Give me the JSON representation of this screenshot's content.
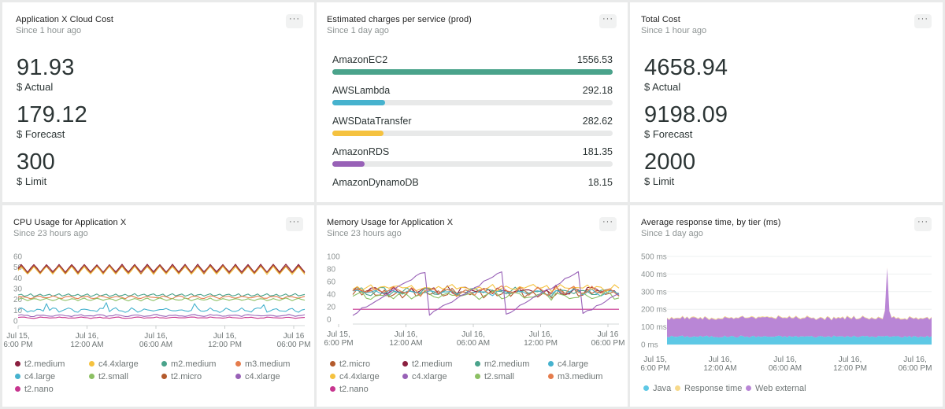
{
  "cards": {
    "cloud_cost": {
      "title": "Application X Cloud Cost",
      "subtitle": "Since 1 hour ago",
      "menu": "···",
      "metrics": [
        {
          "value": "91.93",
          "label": "$ Actual"
        },
        {
          "value": "179.12",
          "label": "$ Forecast"
        },
        {
          "value": "300",
          "label": "$ Limit"
        }
      ]
    },
    "charges": {
      "title": "Estimated charges per service (prod)",
      "subtitle": "Since 1 day ago",
      "menu": "···",
      "max": 1556.53,
      "items": [
        {
          "name": "AmazonEC2",
          "value": "1556.53",
          "amount": 1556.53,
          "color": "#4aa38b"
        },
        {
          "name": "AWSLambda",
          "value": "292.18",
          "amount": 292.18,
          "color": "#46b2ce"
        },
        {
          "name": "AWSDataTransfer",
          "value": "282.62",
          "amount": 282.62,
          "color": "#f5c23f"
        },
        {
          "name": "AmazonRDS",
          "value": "181.35",
          "amount": 181.35,
          "color": "#9861b7"
        },
        {
          "name": "AmazonDynamoDB",
          "value": "18.15",
          "amount": 18.15,
          "color": "#e57c4c"
        }
      ]
    },
    "total_cost": {
      "title": "Total Cost",
      "subtitle": "Since 1 hour ago",
      "menu": "···",
      "metrics": [
        {
          "value": "4658.94",
          "label": "$ Actual"
        },
        {
          "value": "9198.09",
          "label": "$ Forecast"
        },
        {
          "value": "2000",
          "label": "$ Limit"
        }
      ]
    },
    "cpu": {
      "title": "CPU Usage for Application X",
      "subtitle": "Since 23 hours ago",
      "menu": "···",
      "legend": [
        {
          "name": "t2.medium",
          "color": "#8b1f3f"
        },
        {
          "name": "c4.4xlarge",
          "color": "#f5c23f"
        },
        {
          "name": "m2.medium",
          "color": "#4aa38b"
        },
        {
          "name": "m3.medium",
          "color": "#e57c4c"
        },
        {
          "name": "c4.large",
          "color": "#46b2ce"
        },
        {
          "name": "t2.small",
          "color": "#8cc063"
        },
        {
          "name": "t2.micro",
          "color": "#b35a2c"
        },
        {
          "name": "c4.xlarge",
          "color": "#9861b7"
        },
        {
          "name": "t2.nano",
          "color": "#c7358f"
        }
      ]
    },
    "memory": {
      "title": "Memory Usage for Application X",
      "subtitle": "Since 23 hours ago",
      "menu": "···",
      "legend": [
        {
          "name": "t2.micro",
          "color": "#b35a2c"
        },
        {
          "name": "t2.medium",
          "color": "#8b1f3f"
        },
        {
          "name": "m2.medium",
          "color": "#4aa38b"
        },
        {
          "name": "c4.large",
          "color": "#46b2ce"
        },
        {
          "name": "c4.4xlarge",
          "color": "#f5c23f"
        },
        {
          "name": "c4.xlarge",
          "color": "#9861b7"
        },
        {
          "name": "t2.small",
          "color": "#8cc063"
        },
        {
          "name": "m3.medium",
          "color": "#e57c4c"
        },
        {
          "name": "t2.nano",
          "color": "#c7358f"
        }
      ]
    },
    "response": {
      "title": "Average response time, by tier (ms)",
      "subtitle": "Since 1 day ago",
      "menu": "···",
      "legend": [
        {
          "name": "Java",
          "color": "#5ec8e5"
        },
        {
          "name": "Response time",
          "color": "#f7d98a"
        },
        {
          "name": "Web external",
          "color": "#b986d6"
        }
      ]
    }
  },
  "chart_data": [
    {
      "id": "cpu",
      "type": "line",
      "title": "CPU Usage for Application X",
      "ylim": [
        0,
        60
      ],
      "yticks": [
        "60",
        "50",
        "40",
        "30",
        "20",
        "10",
        "0"
      ],
      "xticks": [
        [
          "Jul 15,",
          "6:00 PM"
        ],
        [
          "Jul 16,",
          "12:00 AM"
        ],
        [
          "Jul 16,",
          "06:00 AM"
        ],
        [
          "Jul 16,",
          "12:00 PM"
        ],
        [
          "Jul 16",
          "06:00 PM"
        ]
      ],
      "series": [
        {
          "name": "t2.medium",
          "color": "#8b1f3f",
          "base": 49,
          "amp": 3.5,
          "period": 4,
          "noise": 0.3
        },
        {
          "name": "c4.4xlarge",
          "color": "#f5c23f",
          "base": 47,
          "amp": 3.5,
          "period": 4,
          "noise": 0.3
        },
        {
          "name": "t2.micro",
          "color": "#b35a2c",
          "base": 48,
          "amp": 3.5,
          "period": 4,
          "noise": 0.3
        },
        {
          "name": "m2.medium",
          "color": "#4aa38b",
          "base": 24,
          "amp": 1.2,
          "period": 3,
          "noise": 0.4
        },
        {
          "name": "m3.medium",
          "color": "#e57c4c",
          "base": 22,
          "amp": 1.0,
          "period": 5,
          "noise": 0.5
        },
        {
          "name": "t2.small",
          "color": "#8cc063",
          "base": 20,
          "amp": 1.0,
          "period": 4,
          "noise": 0.4
        },
        {
          "name": "c4.large",
          "color": "#46b2ce",
          "base": 10,
          "amp": 1.2,
          "period": 5,
          "noise": 1.2,
          "spikes": [
            [
              9,
              16
            ],
            [
              28,
              17
            ],
            [
              56,
              16
            ],
            [
              78,
              15
            ]
          ]
        },
        {
          "name": "c4.xlarge",
          "color": "#9861b7",
          "base": 5,
          "amp": 0.6,
          "period": 6,
          "noise": 0.5
        },
        {
          "name": "t2.nano",
          "color": "#c7358f",
          "base": 3,
          "amp": 0.4,
          "period": 6,
          "noise": 0.3
        }
      ]
    },
    {
      "id": "memory",
      "type": "line",
      "title": "Memory Usage for Application X",
      "ylim": [
        0,
        100
      ],
      "yticks": [
        "100",
        "80",
        "60",
        "40",
        "20",
        "0"
      ],
      "xticks": [
        [
          "Jul 15,",
          "6:00 PM"
        ],
        [
          "Jul 16,",
          "12:00 AM"
        ],
        [
          "Jul 16,",
          "06:00 AM"
        ],
        [
          "Jul 16,",
          "12:00 PM"
        ],
        [
          "Jul 16",
          "06:00 PM"
        ]
      ],
      "series": [
        {
          "name": "t2.micro",
          "color": "#b35a2c",
          "base": 42,
          "amp": 5,
          "period": 3,
          "noise": 4
        },
        {
          "name": "t2.medium",
          "color": "#8b1f3f",
          "base": 46,
          "amp": 4,
          "period": 4,
          "noise": 5
        },
        {
          "name": "m2.medium",
          "color": "#4aa38b",
          "base": 44,
          "amp": 4,
          "period": 5,
          "noise": 4
        },
        {
          "name": "c4.large",
          "color": "#46b2ce",
          "base": 43,
          "amp": 3,
          "period": 4,
          "noise": 3
        },
        {
          "name": "c4.4xlarge",
          "color": "#f5c23f",
          "base": 50,
          "amp": 3,
          "period": 3,
          "noise": 3
        },
        {
          "name": "t2.small",
          "color": "#8cc063",
          "base": 38,
          "amp": 4,
          "period": 5,
          "noise": 4
        },
        {
          "name": "m3.medium",
          "color": "#e57c4c",
          "base": 45,
          "amp": 5,
          "period": 4,
          "noise": 4
        },
        {
          "name": "t2.nano",
          "color": "#c7358f",
          "base": 16,
          "amp": 0,
          "period": 4,
          "noise": 0
        },
        {
          "name": "c4.xlarge",
          "color": "#9861b7",
          "sawtooth": true,
          "min": 8,
          "max": 80,
          "period": 17
        }
      ]
    },
    {
      "id": "response",
      "type": "area",
      "title": "Average response time, by tier (ms)",
      "ylim": [
        0,
        500
      ],
      "yticks": [
        "500 ms",
        "400 ms",
        "300 ms",
        "200 ms",
        "100 ms",
        "0 ms"
      ],
      "xticks": [
        [
          "Jul 15,",
          "6:00 PM"
        ],
        [
          "Jul 16,",
          "12:00 AM"
        ],
        [
          "Jul 16,",
          "06:00 AM"
        ],
        [
          "Jul 16,",
          "12:00 PM"
        ],
        [
          "Jul 16,",
          "06:00 PM"
        ]
      ],
      "series": [
        {
          "name": "Java",
          "color": "#5ec8e5",
          "base": 45,
          "noise": 6
        },
        {
          "name": "Web external",
          "color": "#b986d6",
          "base": 105,
          "noise": 8,
          "spike_at": 0.83,
          "spike_value": 385
        },
        {
          "name": "Response time",
          "color": "#f7d98a",
          "base": 3,
          "noise": 2
        }
      ]
    }
  ]
}
